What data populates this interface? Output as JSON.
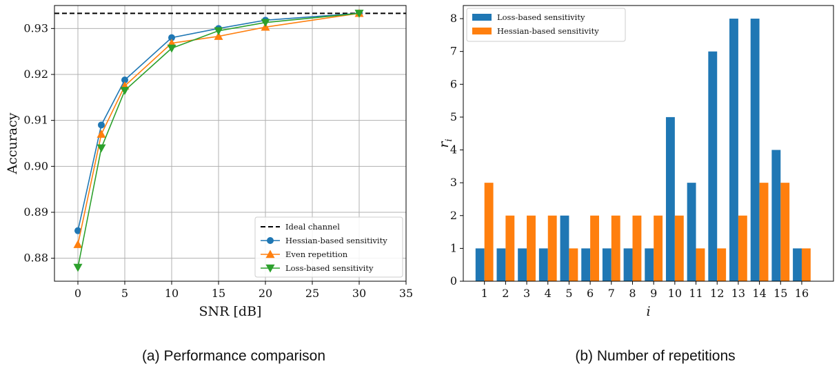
{
  "chart_data": [
    {
      "type": "line",
      "caption": "(a) Performance comparison",
      "xlabel": "SNR [dB]",
      "ylabel": "Accuracy",
      "xlim": [
        -2.5,
        35
      ],
      "ylim": [
        0.875,
        0.935
      ],
      "xticks": [
        0,
        5,
        10,
        15,
        20,
        25,
        30,
        35
      ],
      "yticks": [
        0.88,
        0.89,
        0.9,
        0.91,
        0.92,
        0.93
      ],
      "ytick_labels": [
        "0.88",
        "0.89",
        "0.90",
        "0.91",
        "0.92",
        "0.93"
      ],
      "grid": true,
      "legend_position": "lower-right",
      "reference_line": {
        "name": "Ideal channel",
        "y": 0.9333,
        "color": "#000000"
      },
      "series": [
        {
          "name": "Hessian-based sensitivity",
          "color": "#1f77b4",
          "marker": "circle",
          "x": [
            0,
            2.5,
            5,
            10,
            15,
            20,
            30
          ],
          "y": [
            0.886,
            0.909,
            0.9188,
            0.928,
            0.93,
            0.9318,
            0.9333
          ]
        },
        {
          "name": "Even repetition",
          "color": "#ff7f0e",
          "marker": "triangle-up",
          "x": [
            0,
            2.5,
            5,
            10,
            15,
            20,
            30
          ],
          "y": [
            0.883,
            0.907,
            0.9175,
            0.9268,
            0.9283,
            0.9303,
            0.9333
          ]
        },
        {
          "name": "Loss-based sensitivity",
          "color": "#2ca02c",
          "marker": "triangle-down",
          "x": [
            0,
            2.5,
            5,
            10,
            15,
            20,
            30
          ],
          "y": [
            0.878,
            0.904,
            0.9165,
            0.9257,
            0.9295,
            0.9313,
            0.9333
          ]
        }
      ]
    },
    {
      "type": "bar",
      "caption": "(b) Number of repetitions",
      "xlabel": "i",
      "ylabel": "r",
      "ylabel_subscript": "i",
      "ylim": [
        0,
        8.4
      ],
      "yticks": [
        0,
        1,
        2,
        3,
        4,
        5,
        6,
        7,
        8
      ],
      "categories": [
        "1",
        "2",
        "3",
        "4",
        "5",
        "6",
        "7",
        "8",
        "9",
        "10",
        "11",
        "12",
        "13",
        "14",
        "15",
        "16"
      ],
      "legend_position": "top-left",
      "series": [
        {
          "name": "Loss-based sensitivity",
          "color": "#1f77b4",
          "values": [
            1,
            1,
            1,
            1,
            2,
            1,
            1,
            1,
            1,
            5,
            3,
            7,
            8,
            8,
            4,
            1
          ]
        },
        {
          "name": "Hessian-based sensitivity",
          "color": "#ff7f0e",
          "values": [
            3,
            2,
            2,
            2,
            1,
            2,
            2,
            2,
            2,
            2,
            1,
            1,
            2,
            3,
            3,
            1
          ]
        }
      ]
    }
  ]
}
